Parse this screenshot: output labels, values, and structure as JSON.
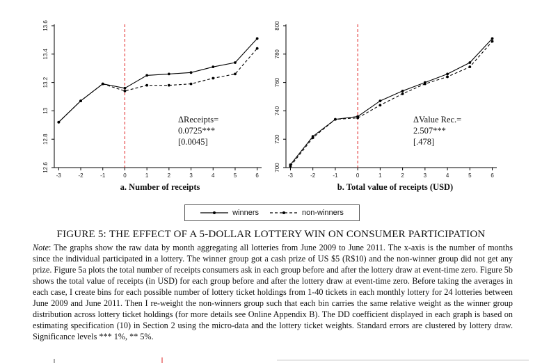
{
  "figure": {
    "caption_number": "FIGURE 5:",
    "caption_title": "THE EFFECT OF A 5-DOLLAR LOTTERY WIN ON CONSUMER PARTICIPATION",
    "note_label": "Note",
    "note_text": ": The graphs show the raw data by month aggregating all lotteries from June 2009 to June 2011. The x-axis is the number of months since the individual participated in a lottery. The winner group got a cash prize of US $5 (R$10) and the non-winner group did not get any prize. Figure 5a plots the total number of receipts consumers ask in each group before and after the lottery draw at event-time zero. Figure 5b shows the total value of receipts (in USD) for each group before and after the lottery draw at event-time zero. Before taking the averages in each case, I create bins for each possible number of lottery ticket holdings from 1-40 tickets in each monthly lottery for 24 lotteries between June 2009 and June 2011. Then I re-weight the non-winners group such that each bin carries the same relative weight as the winner group distribution across lottery ticket holdings (for more details see Online Appendix B). The DD coefficient displayed in each graph is based on estimating specification (10) in Section 2 using the micro-data and the lottery ticket weights. Standard errors are clustered by lottery draw. Significance levels *** 1%, ** 5%."
  },
  "legend": {
    "winners": "winners",
    "non_winners": "non-winners"
  },
  "chart_data": [
    {
      "type": "line",
      "panel_letter": "a.",
      "title": "Number of receipts",
      "x": [
        -3,
        -2,
        -1,
        0,
        1,
        2,
        3,
        4,
        5,
        6
      ],
      "x_ticks": [
        "-3",
        "-2",
        "-1",
        "0",
        "1",
        "2",
        "3",
        "4",
        "5",
        "6"
      ],
      "ylim": [
        12.6,
        13.6
      ],
      "y_ticks": [
        "12.6",
        "12.8",
        "13",
        "13.2",
        "13.4",
        "13.6"
      ],
      "y_tick_values": [
        12.6,
        12.8,
        13.0,
        13.2,
        13.4,
        13.6
      ],
      "event_line_x": 0,
      "series": [
        {
          "name": "winners",
          "style": "solid",
          "values": [
            12.92,
            13.07,
            13.19,
            13.16,
            13.25,
            13.26,
            13.27,
            13.31,
            13.34,
            13.51
          ]
        },
        {
          "name": "non-winners",
          "style": "dashed",
          "values": [
            12.92,
            13.07,
            13.19,
            13.14,
            13.18,
            13.18,
            13.19,
            13.23,
            13.26,
            13.44
          ]
        }
      ],
      "annotation": [
        "ΔReceipts=",
        "0.0725***",
        "[0.0045]"
      ]
    },
    {
      "type": "line",
      "panel_letter": "b.",
      "title": "Total value of receipts (USD)",
      "x": [
        -3,
        -2,
        -1,
        0,
        1,
        2,
        3,
        4,
        5,
        6
      ],
      "x_ticks": [
        "-3",
        "-2",
        "-1",
        "0",
        "1",
        "2",
        "3",
        "4",
        "5",
        "6"
      ],
      "ylim": [
        700,
        800
      ],
      "y_ticks": [
        "700",
        "720",
        "740",
        "760",
        "780",
        "800"
      ],
      "y_tick_values": [
        700,
        720,
        740,
        760,
        780,
        800
      ],
      "event_line_x": 0,
      "series": [
        {
          "name": "winners",
          "style": "solid",
          "values": [
            702,
            722,
            734,
            736,
            747,
            754,
            760,
            766,
            774,
            791
          ]
        },
        {
          "name": "non-winners",
          "style": "dashed",
          "values": [
            701,
            721,
            734,
            735,
            744,
            752,
            759,
            764,
            771,
            789
          ]
        }
      ],
      "annotation": [
        "ΔValue Rec.=",
        "2.507***",
        "[.478]"
      ]
    }
  ]
}
